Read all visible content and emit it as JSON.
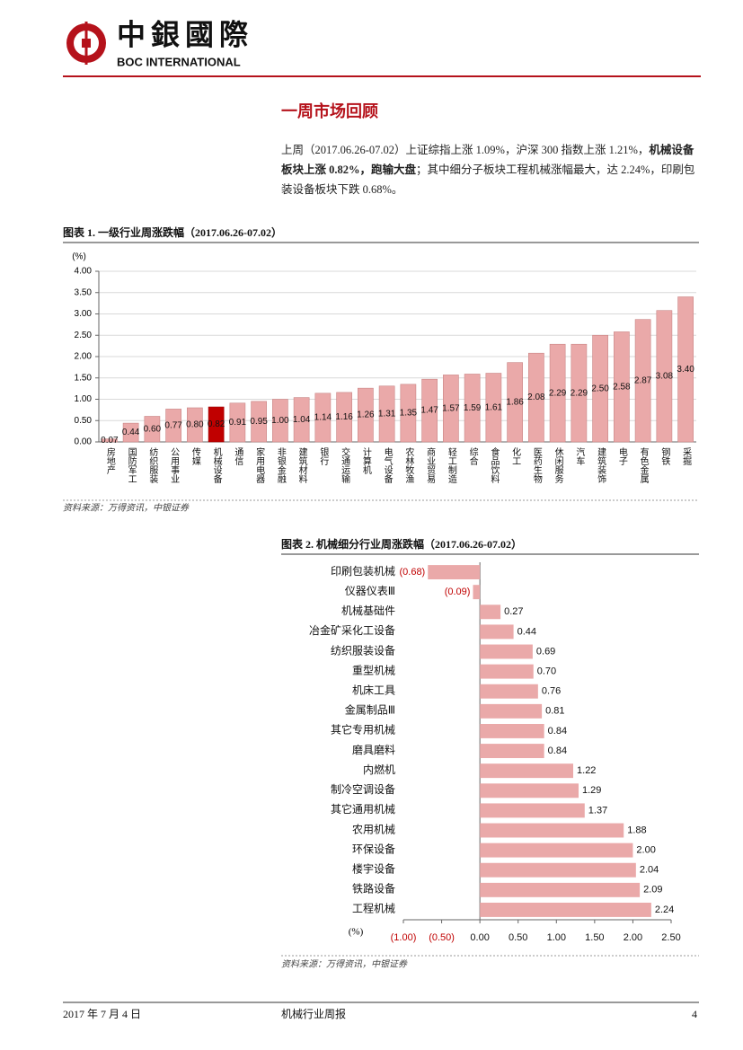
{
  "header": {
    "logo_cn": "中銀國際",
    "logo_en": "BOC INTERNATIONAL"
  },
  "section_title": "一周市场回顾",
  "paragraph": [
    {
      "text": "上周（2017.06.26-07.02）上证综指上涨 1.09%，沪深 300 指数上涨 1.21%，",
      "bold": false
    },
    {
      "text": "机械设备板块上涨 0.82%，跑输大盘",
      "bold": true
    },
    {
      "text": "；其中细分子板块工程机械涨幅最大，达 2.24%，印刷包装设备板块下跌 0.68%。",
      "bold": false
    }
  ],
  "chart_data": [
    {
      "type": "bar",
      "title": "图表 1. 一级行业周涨跌幅（2017.06.26-07.02）",
      "y_label": "(%)",
      "categories": [
        "房地产",
        "国防军工",
        "纺织服装",
        "公用事业",
        "传媒",
        "机械设备",
        "通信",
        "家用电器",
        "非银金融",
        "建筑材料",
        "银行",
        "交通运输",
        "计算机",
        "电气设备",
        "农林牧渔",
        "商业贸易",
        "轻工制造",
        "综合",
        "食品饮料",
        "化工",
        "医药生物",
        "休闲服务",
        "汽车",
        "建筑装饰",
        "电子",
        "有色金属",
        "钢铁",
        "采掘"
      ],
      "values": [
        0.07,
        0.44,
        0.6,
        0.77,
        0.8,
        0.82,
        0.91,
        0.95,
        1.0,
        1.04,
        1.14,
        1.16,
        1.26,
        1.31,
        1.35,
        1.47,
        1.57,
        1.59,
        1.61,
        1.86,
        2.08,
        2.29,
        2.29,
        2.5,
        2.58,
        2.87,
        3.08,
        3.4
      ],
      "value_labels": [
        "0.07",
        "0.44",
        "0.60",
        "0.77",
        "0.80",
        "0.82",
        "0.91",
        "0.95",
        "1.00",
        "1.04",
        "1.14",
        "1.16",
        "1.26",
        "1.31",
        "1.35",
        "1.47",
        "1.57",
        "1.59",
        "1.61",
        "1.86",
        "2.08",
        "2.29",
        "2.29",
        "2.50",
        "2.58",
        "2.87",
        "3.08",
        "3.40"
      ],
      "colors": [
        "#eaa9a9",
        "#eaa9a9",
        "#eaa9a9",
        "#eaa9a9",
        "#eaa9a9",
        "#c00000",
        "#eaa9a9",
        "#eaa9a9",
        "#eaa9a9",
        "#eaa9a9",
        "#eaa9a9",
        "#eaa9a9",
        "#eaa9a9",
        "#eaa9a9",
        "#eaa9a9",
        "#eaa9a9",
        "#eaa9a9",
        "#eaa9a9",
        "#eaa9a9",
        "#eaa9a9",
        "#eaa9a9",
        "#eaa9a9",
        "#eaa9a9",
        "#eaa9a9",
        "#eaa9a9",
        "#eaa9a9",
        "#eaa9a9",
        "#eaa9a9"
      ],
      "ylim": [
        0,
        4
      ],
      "yticks": [
        {
          "value": 0,
          "label": "0.00"
        },
        {
          "value": 0.5,
          "label": "0.50"
        },
        {
          "value": 1,
          "label": "1.00"
        },
        {
          "value": 1.5,
          "label": "1.50"
        },
        {
          "value": 2,
          "label": "2.00"
        },
        {
          "value": 2.5,
          "label": "2.50"
        },
        {
          "value": 3,
          "label": "3.00"
        },
        {
          "value": 3.5,
          "label": "3.50"
        },
        {
          "value": 4,
          "label": "4.00"
        }
      ],
      "grid": true,
      "source": "资料来源：万得资讯，中银证券"
    },
    {
      "type": "barh",
      "title": "图表 2. 机械细分行业周涨跌幅（2017.06.26-07.02）",
      "x_label": "(%)",
      "categories": [
        "印刷包装机械",
        "仪器仪表Ⅲ",
        "机械基础件",
        "冶金矿采化工设备",
        "纺织服装设备",
        "重型机械",
        "机床工具",
        "金属制品Ⅲ",
        "其它专用机械",
        "磨具磨料",
        "内燃机",
        "制冷空调设备",
        "其它通用机械",
        "农用机械",
        "环保设备",
        "楼宇设备",
        "铁路设备",
        "工程机械"
      ],
      "values": [
        -0.68,
        -0.09,
        0.27,
        0.44,
        0.69,
        0.7,
        0.76,
        0.81,
        0.84,
        0.84,
        1.22,
        1.29,
        1.37,
        1.88,
        2.0,
        2.04,
        2.09,
        2.24
      ],
      "value_labels": [
        "(0.68)",
        "(0.09)",
        "0.27",
        "0.44",
        "0.69",
        "0.70",
        "0.76",
        "0.81",
        "0.84",
        "0.84",
        "1.22",
        "1.29",
        "1.37",
        "1.88",
        "2.00",
        "2.04",
        "2.09",
        "2.24"
      ],
      "color": "#eaa9a9",
      "negative_label_color": "#c00000",
      "xlim": [
        -1,
        2.5
      ],
      "xticks": [
        {
          "value": -1,
          "label": "(1.00)"
        },
        {
          "value": -0.5,
          "label": "(0.50)"
        },
        {
          "value": 0,
          "label": "0.00"
        },
        {
          "value": 0.5,
          "label": "0.50"
        },
        {
          "value": 1,
          "label": "1.00"
        },
        {
          "value": 1.5,
          "label": "1.50"
        },
        {
          "value": 2,
          "label": "2.00"
        },
        {
          "value": 2.5,
          "label": "2.50"
        }
      ],
      "source": "资料来源：万得资讯，中银证券"
    }
  ],
  "footer": {
    "date": "2017 年 7 月 4 日",
    "report": "机械行业周报",
    "page": "4"
  }
}
